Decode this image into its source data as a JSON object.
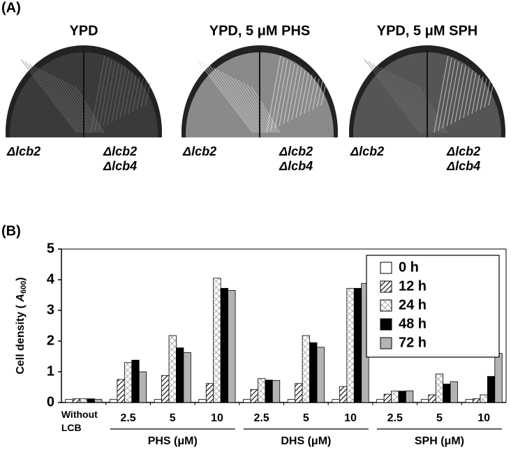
{
  "panel_a": {
    "label": "(A)",
    "plates": [
      {
        "title": "YPD",
        "left": "Δlcb2",
        "right": [
          "Δlcb2",
          "Δlcb4"
        ]
      },
      {
        "title": "YPD, 5 μM PHS",
        "left": "Δlcb2",
        "right": [
          "Δlcb2",
          "Δlcb4"
        ]
      },
      {
        "title": "YPD, 5 μM SPH",
        "left": "Δlcb2",
        "right": [
          "Δlcb2",
          "Δlcb4"
        ]
      }
    ]
  },
  "chart_data": {
    "type": "bar",
    "label": "(B)",
    "ylabel": [
      "Cell density ( ",
      "A",
      "600",
      ")"
    ],
    "categories": [
      "Without LCB",
      "2.5",
      "5",
      "10",
      "2.5",
      "5",
      "10",
      "2.5",
      "5",
      "10"
    ],
    "groups": [
      {
        "name": "PHS (μM)",
        "span": [
          1,
          3
        ]
      },
      {
        "name": "DHS (μM)",
        "span": [
          4,
          6
        ]
      },
      {
        "name": "SPH (μM)",
        "span": [
          7,
          9
        ]
      }
    ],
    "ylim": [
      0,
      5
    ],
    "yticks": [
      0,
      1,
      2,
      3,
      4,
      5
    ],
    "legend": "upper right",
    "series": [
      {
        "name": "0 h",
        "color": "#ffffff",
        "values": [
          0.1,
          0.1,
          0.1,
          0.1,
          0.1,
          0.1,
          0.1,
          0.1,
          0.1,
          0.1
        ]
      },
      {
        "name": "12 h",
        "color": "#ffffff",
        "pattern": "hatch",
        "values": [
          0.12,
          0.75,
          0.88,
          0.62,
          0.42,
          0.62,
          0.52,
          0.27,
          0.25,
          0.12
        ]
      },
      {
        "name": "24 h",
        "color": "#ffffff",
        "pattern": "crosshatch",
        "values": [
          0.12,
          1.3,
          2.18,
          4.05,
          0.78,
          2.18,
          3.72,
          0.37,
          0.93,
          0.25
        ]
      },
      {
        "name": "48 h",
        "color": "#000000",
        "values": [
          0.12,
          1.38,
          1.78,
          3.72,
          0.73,
          1.95,
          3.72,
          0.37,
          0.6,
          0.85
        ]
      },
      {
        "name": "72 h",
        "color": "#b3b3b3",
        "values": [
          0.1,
          1.0,
          1.63,
          3.65,
          0.72,
          1.8,
          3.88,
          0.38,
          0.68,
          1.6
        ]
      }
    ]
  }
}
